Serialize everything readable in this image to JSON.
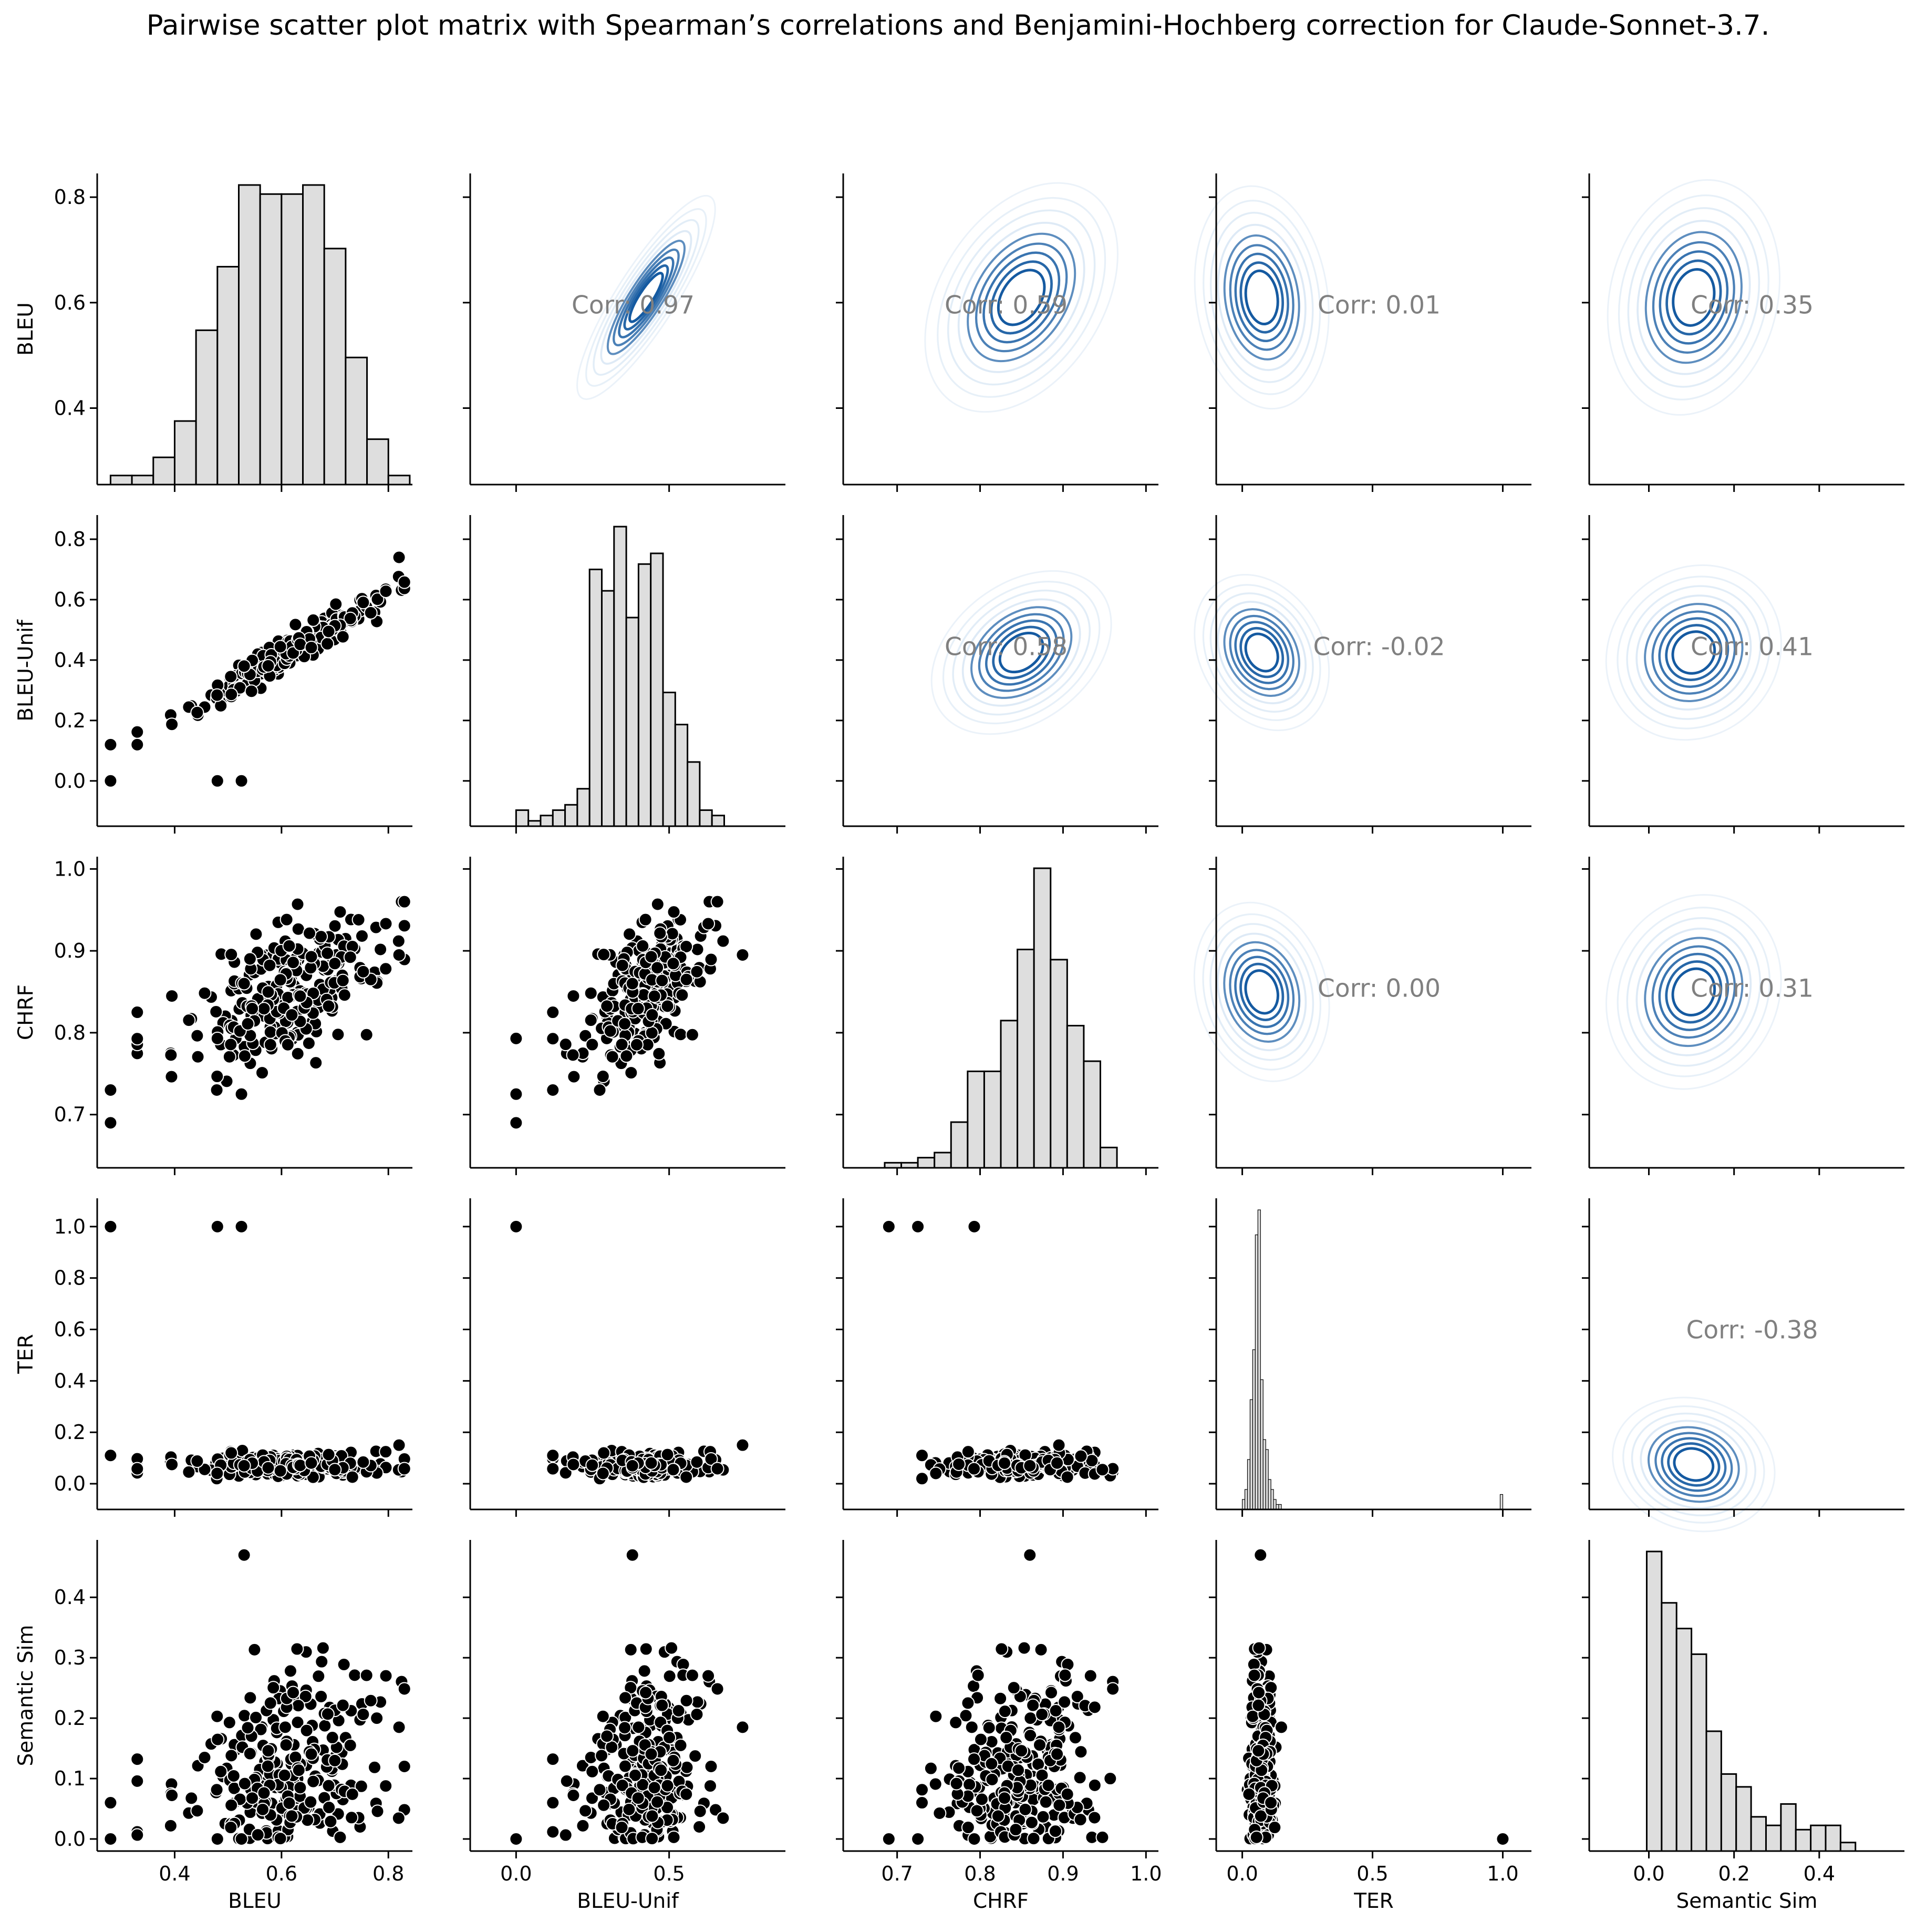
{
  "title": "Pairwise scatter plot matrix with Spearman’s correlations and Benjamini-Hochberg correction for Claude-Sonnet-3.7.",
  "colors": {
    "hist_fill": "#dedede",
    "hist_edge": "#000000",
    "scatter": "#000000",
    "kde_light": "#c6dbef",
    "kde_dark": "#08519c",
    "corr_text": "#808080"
  },
  "chart_data": {
    "type": "pairplot",
    "variables": [
      "BLEU",
      "BLEU-Unif",
      "CHRF",
      "TER",
      "Semantic Sim"
    ],
    "axes": {
      "BLEU": {
        "range": [
          0.255,
          0.845
        ],
        "ticks": [
          0.2,
          0.4,
          0.6,
          0.8
        ],
        "x_ticks": [
          0.4,
          0.6,
          0.8
        ]
      },
      "BLEU-Unif": {
        "range": [
          -0.15,
          0.88
        ],
        "ticks": [
          0.0,
          0.2,
          0.4,
          0.6,
          0.8
        ],
        "x_ticks": [
          0.0,
          0.5
        ]
      },
      "CHRF": {
        "range": [
          0.635,
          1.015
        ],
        "ticks": [
          0.7,
          0.8,
          0.9,
          1.0
        ],
        "x_ticks": [
          0.7,
          0.8,
          0.9,
          1.0
        ]
      },
      "TER": {
        "range": [
          -0.1,
          1.11
        ],
        "ticks": [
          0.0,
          0.2,
          0.4,
          0.6,
          0.8,
          1.0
        ],
        "x_ticks": [
          0.0,
          0.5,
          1.0
        ]
      },
      "Semantic Sim": {
        "range": [
          -0.02,
          0.495
        ],
        "ticks": [
          0.0,
          0.1,
          0.2,
          0.3,
          0.4
        ],
        "x_range": [
          -0.14,
          0.6
        ],
        "x_ticks": [
          0.0,
          0.2,
          0.4
        ]
      }
    },
    "correlations": [
      {
        "row": "BLEU",
        "col": "BLEU-Unif",
        "label": "Corr: 0.97"
      },
      {
        "row": "BLEU",
        "col": "CHRF",
        "label": "Corr: 0.59"
      },
      {
        "row": "BLEU",
        "col": "TER",
        "label": "Corr: 0.01"
      },
      {
        "row": "BLEU",
        "col": "Semantic Sim",
        "label": "Corr: 0.35"
      },
      {
        "row": "BLEU-Unif",
        "col": "CHRF",
        "label": "Corr: 0.58"
      },
      {
        "row": "BLEU-Unif",
        "col": "TER",
        "label": "Corr: -0.02"
      },
      {
        "row": "BLEU-Unif",
        "col": "Semantic Sim",
        "label": "Corr: 0.41"
      },
      {
        "row": "CHRF",
        "col": "TER",
        "label": "Corr: 0.00"
      },
      {
        "row": "CHRF",
        "col": "Semantic Sim",
        "label": "Corr: 0.31"
      },
      {
        "row": "TER",
        "col": "Semantic Sim",
        "label": "Corr: -0.38"
      }
    ],
    "histograms": {
      "BLEU": {
        "edges": [
          0.28,
          0.32,
          0.36,
          0.4,
          0.44,
          0.48,
          0.52,
          0.56,
          0.6,
          0.64,
          0.68,
          0.72,
          0.76,
          0.8,
          0.84
        ],
        "counts": [
          1,
          1,
          3,
          7,
          17,
          24,
          33,
          32,
          32,
          33,
          26,
          14,
          5,
          1
        ]
      },
      "BLEU-Unif": {
        "edges": [
          0.0,
          0.04,
          0.08,
          0.12,
          0.16,
          0.2,
          0.24,
          0.28,
          0.32,
          0.36,
          0.4,
          0.44,
          0.48,
          0.52,
          0.56,
          0.6,
          0.64,
          0.68,
          0.72,
          0.76
        ],
        "counts": [
          3,
          1,
          2,
          3,
          4,
          7,
          48,
          44,
          56,
          39,
          49,
          51,
          25,
          19,
          12,
          3,
          2,
          0,
          0
        ]
      },
      "CHRF": {
        "edges": [
          0.685,
          0.705,
          0.725,
          0.745,
          0.765,
          0.785,
          0.805,
          0.825,
          0.845,
          0.865,
          0.885,
          0.905,
          0.925,
          0.945,
          0.965
        ],
        "counts": [
          1,
          1,
          2,
          3,
          9,
          19,
          19,
          29,
          43,
          59,
          41,
          28,
          21,
          4
        ]
      },
      "TER": {
        "edges": [
          0.0,
          0.01,
          0.02,
          0.03,
          0.04,
          0.05,
          0.06,
          0.07,
          0.08,
          0.09,
          0.1,
          0.11,
          0.12,
          0.13,
          0.14,
          0.15,
          0.99,
          1.0
        ],
        "counts": [
          2,
          4,
          10,
          22,
          32,
          55,
          60,
          26,
          14,
          12,
          6,
          4,
          2,
          1,
          1,
          0,
          3
        ]
      },
      "Semantic Sim": {
        "edges": [
          -0.005,
          0.03,
          0.065,
          0.1,
          0.135,
          0.17,
          0.205,
          0.24,
          0.275,
          0.31,
          0.345,
          0.38,
          0.415,
          0.45,
          0.485
        ],
        "counts": [
          70,
          58,
          52,
          46,
          28,
          18,
          15,
          8,
          6,
          11,
          5,
          6,
          6,
          2
        ]
      }
    }
  }
}
